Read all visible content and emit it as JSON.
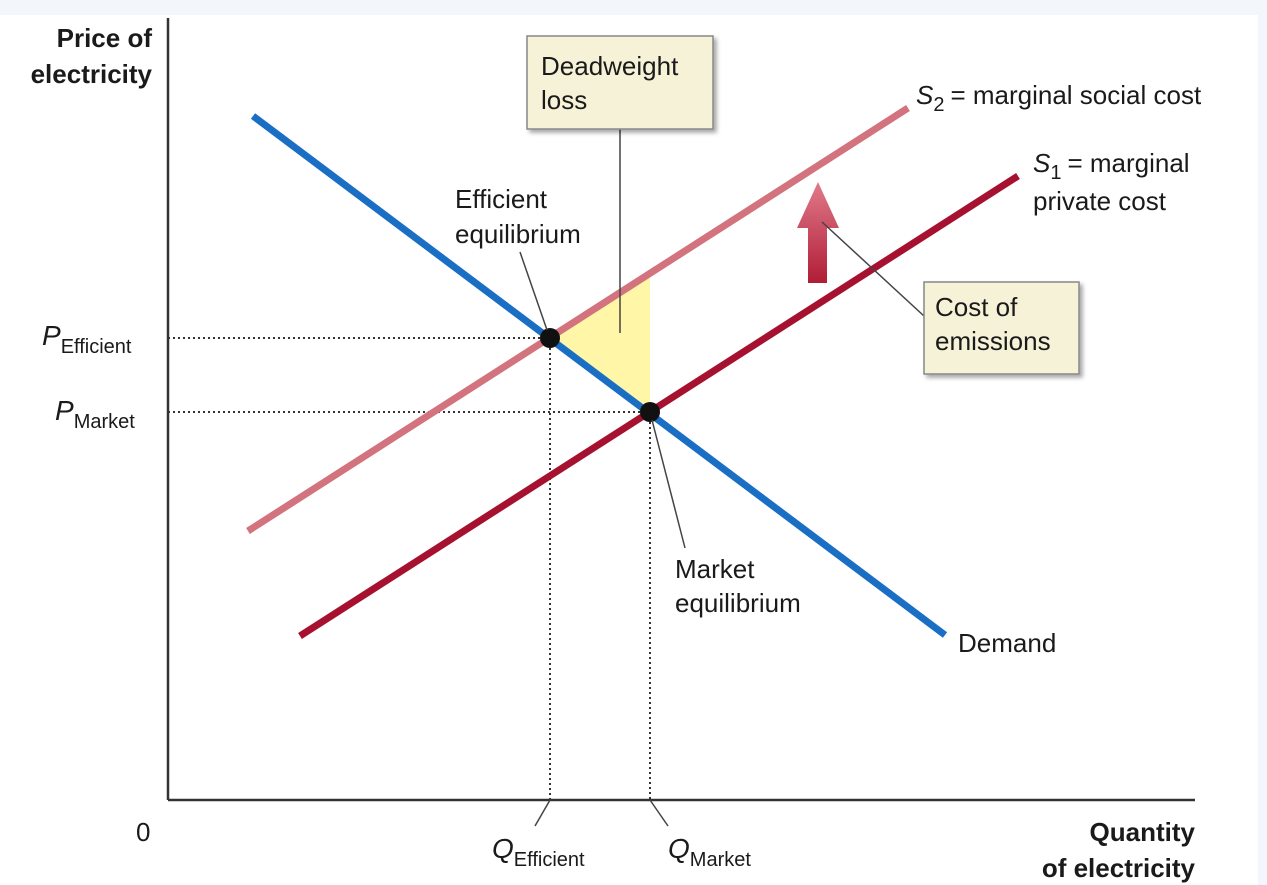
{
  "axes": {
    "y_label": [
      "Price of",
      "electricity"
    ],
    "x_label": [
      "Quantity",
      "of electricity"
    ],
    "origin": "0"
  },
  "curves": {
    "demand": "Demand",
    "s1": {
      "symbol": "S",
      "subscript": "1",
      "label": [
        "= marginal",
        "private cost"
      ]
    },
    "s2": {
      "symbol": "S",
      "subscript": "2",
      "label": [
        "= marginal social cost"
      ]
    }
  },
  "price_labels": [
    {
      "symbol": "P",
      "subscript": "Efficient"
    },
    {
      "symbol": "P",
      "subscript": "Market"
    }
  ],
  "quantity_labels": [
    {
      "symbol": "Q",
      "subscript": "Efficient"
    },
    {
      "symbol": "Q",
      "subscript": "Market"
    }
  ],
  "annotations": {
    "deadweight_loss": [
      "Deadweight",
      "loss"
    ],
    "efficient_equilibrium": [
      "Efficient",
      "equilibrium"
    ],
    "market_equilibrium": [
      "Market",
      "equilibrium"
    ],
    "cost_of_emissions": [
      "Cost of",
      "emissions"
    ]
  }
}
